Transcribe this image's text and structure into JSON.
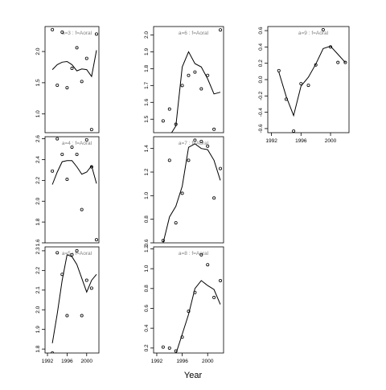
{
  "figure": {
    "xlabel": "Year"
  },
  "chart_data": [
    {
      "type": "line",
      "title": "a=3 : f=Aoral",
      "xlim": [
        1991.5,
        2002.5
      ],
      "ylim": [
        0.7,
        2.4
      ],
      "yticks": [
        "1.0",
        "1.5",
        "2.0"
      ],
      "ytick_values": [
        1.0,
        1.5,
        2.0
      ],
      "points": {
        "x": [
          1993,
          1994,
          1995,
          1996,
          1997,
          1998,
          1999,
          2000,
          2001,
          2002
        ],
        "y": [
          2.35,
          1.46,
          2.31,
          1.42,
          1.73,
          2.06,
          1.52,
          1.89,
          0.75,
          2.28
        ]
      },
      "fit": {
        "x": [
          1993,
          1994,
          1995,
          1996,
          1997,
          1998,
          1999,
          2000,
          2001,
          2002
        ],
        "y": [
          1.71,
          1.79,
          1.83,
          1.84,
          1.79,
          1.69,
          1.72,
          1.71,
          1.6,
          2.02
        ]
      }
    },
    {
      "type": "line",
      "title": "a=6 : f=Aoral",
      "xlim": [
        1991.5,
        2002.5
      ],
      "ylim": [
        1.42,
        2.05
      ],
      "yticks": [
        "1.5",
        "1.6",
        "1.7",
        "1.8",
        "1.9",
        "2.0"
      ],
      "ytick_values": [
        1.5,
        1.6,
        1.7,
        1.8,
        1.9,
        2.0
      ],
      "points": {
        "x": [
          1993,
          1994,
          1995,
          1996,
          1997,
          1998,
          1999,
          2000,
          2001,
          2002
        ],
        "y": [
          1.49,
          1.56,
          1.47,
          1.7,
          1.76,
          1.78,
          1.68,
          1.76,
          1.44,
          2.03
        ]
      },
      "fit": {
        "x": [
          1993,
          1994,
          1995,
          1996,
          1997,
          1998,
          1999,
          2000,
          2001,
          2002
        ],
        "y": [
          1.28,
          1.4,
          1.46,
          1.81,
          1.9,
          1.83,
          1.81,
          1.74,
          1.65,
          1.66
        ]
      }
    },
    {
      "type": "line",
      "title": "a=9 : f=Aoral",
      "xlim": [
        1991.5,
        2002.5
      ],
      "ylim": [
        -0.65,
        0.65
      ],
      "yticks": [
        "-0.6",
        "-0.4",
        "-0.2",
        "0.0",
        "0.2",
        "0.4",
        "0.6"
      ],
      "ytick_values": [
        -0.6,
        -0.4,
        -0.2,
        0.0,
        0.2,
        0.4,
        0.6
      ],
      "xticks": [
        "1992",
        "1996",
        "2000"
      ],
      "xtick_values": [
        1992,
        1996,
        2000
      ],
      "points": {
        "x": [
          1993,
          1994,
          1995,
          1996,
          1997,
          1998,
          1999,
          2000,
          2001,
          2002
        ],
        "y": [
          0.11,
          -0.24,
          -0.63,
          -0.05,
          -0.07,
          0.18,
          0.61,
          0.4,
          0.21,
          0.21
        ]
      },
      "fit": {
        "x": [
          1993,
          1994,
          1995,
          1996,
          1997,
          1998,
          1999,
          2000,
          2001,
          2002
        ],
        "y": [
          0.09,
          -0.21,
          -0.44,
          -0.08,
          0.03,
          0.19,
          0.38,
          0.41,
          0.31,
          0.21
        ]
      }
    },
    {
      "type": "line",
      "title": "a=4 : f=Aoral",
      "xlim": [
        1991.5,
        2002.5
      ],
      "ylim": [
        1.6,
        2.62
      ],
      "yticks": [
        "1.6",
        "1.8",
        "2.0",
        "2.2",
        "2.4",
        "2.6"
      ],
      "ytick_values": [
        1.6,
        1.8,
        2.0,
        2.2,
        2.4,
        2.6
      ],
      "points": {
        "x": [
          1993,
          1994,
          1995,
          1996,
          1997,
          1998,
          1999,
          2000,
          2001,
          2002
        ],
        "y": [
          2.29,
          2.6,
          2.45,
          2.21,
          2.52,
          2.45,
          1.92,
          2.59,
          2.33,
          1.63
        ]
      },
      "fit": {
        "x": [
          1993,
          1994,
          1995,
          1996,
          1997,
          1998,
          1999,
          2000,
          2001,
          2002
        ],
        "y": [
          2.16,
          2.28,
          2.38,
          2.39,
          2.39,
          2.33,
          2.26,
          2.28,
          2.34,
          2.17
        ]
      }
    },
    {
      "type": "line",
      "title": "a=7 : f=Aoral",
      "xlim": [
        1991.5,
        2002.5
      ],
      "ylim": [
        0.6,
        1.5
      ],
      "yticks": [
        "0.6",
        "0.8",
        "1.0",
        "1.2",
        "1.4"
      ],
      "ytick_values": [
        0.6,
        0.8,
        1.0,
        1.2,
        1.4
      ],
      "points": {
        "x": [
          1993,
          1994,
          1995,
          1996,
          1997,
          1998,
          1999,
          2000,
          2001,
          2002
        ],
        "y": [
          0.62,
          1.3,
          0.77,
          1.02,
          1.3,
          1.47,
          1.46,
          1.42,
          0.98,
          1.23
        ]
      },
      "fit": {
        "x": [
          1993,
          1994,
          1995,
          1996,
          1997,
          1998,
          1999,
          2000,
          2001,
          2002
        ],
        "y": [
          0.6,
          0.82,
          0.91,
          1.08,
          1.41,
          1.44,
          1.4,
          1.39,
          1.3,
          1.13
        ]
      }
    },
    {
      "type": "line",
      "title": "a=5 : f=Aoral",
      "xlim": [
        1991.5,
        2002.5
      ],
      "ylim": [
        1.78,
        2.32
      ],
      "yticks": [
        "1.8",
        "1.9",
        "2.0",
        "2.1",
        "2.2",
        "2.3"
      ],
      "ytick_values": [
        1.8,
        1.9,
        2.0,
        2.1,
        2.2,
        2.3
      ],
      "xticks": [
        "1992",
        "1996",
        "2000"
      ],
      "xtick_values": [
        1992,
        1996,
        2000
      ],
      "points": {
        "x": [
          1993,
          1994,
          1995,
          1996,
          1997,
          1998,
          1999,
          2000,
          2001,
          2002
        ],
        "y": [
          1.78,
          2.29,
          2.18,
          1.97,
          2.28,
          2.3,
          1.97,
          2.15,
          2.11,
          2.33
        ]
      },
      "fit": {
        "x": [
          1993,
          1994,
          1995,
          1996,
          1997,
          1998,
          1999,
          2000,
          2001,
          2002
        ],
        "y": [
          1.83,
          1.98,
          2.15,
          2.28,
          2.27,
          2.23,
          2.16,
          2.09,
          2.15,
          2.18
        ]
      }
    },
    {
      "type": "line",
      "title": "a=8 : f=Aoral",
      "xlim": [
        1991.5,
        2002.5
      ],
      "ylim": [
        0.15,
        1.22
      ],
      "yticks": [
        "0.2",
        "0.4",
        "0.6",
        "0.8",
        "1.0",
        "1.2"
      ],
      "ytick_values": [
        0.2,
        0.4,
        0.6,
        0.8,
        1.0,
        1.2
      ],
      "xticks": [
        "1992",
        "1996",
        "2000"
      ],
      "xtick_values": [
        1992,
        1996,
        2000
      ],
      "points": {
        "x": [
          1993,
          1994,
          1995,
          1996,
          1997,
          1998,
          1999,
          2000,
          2001,
          2002
        ],
        "y": [
          0.21,
          0.2,
          0.17,
          0.31,
          0.57,
          0.76,
          1.14,
          1.04,
          0.71,
          0.88
        ]
      },
      "fit": {
        "x": [
          1993,
          1994,
          1995,
          1996,
          1997,
          1998,
          1999,
          2000,
          2001,
          2002
        ],
        "y": [
          0.1,
          0.08,
          0.14,
          0.34,
          0.54,
          0.8,
          0.88,
          0.83,
          0.79,
          0.64
        ]
      }
    }
  ]
}
